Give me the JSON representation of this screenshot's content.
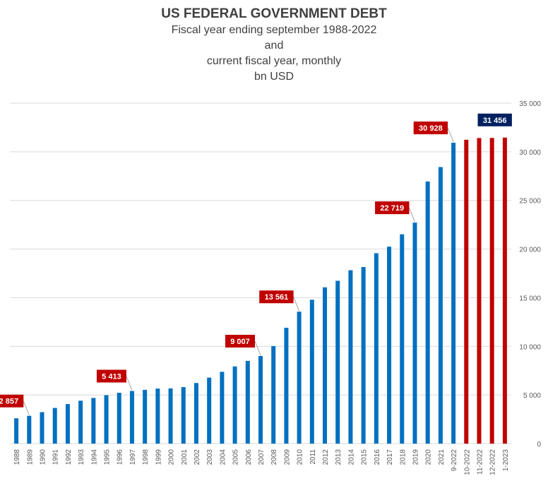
{
  "chart_data": {
    "type": "bar",
    "title": "US FEDERAL GOVERNMENT DEBT",
    "subtitle_lines": [
      "Fiscal year ending september 1988-2022",
      "and",
      "current fiscal year, monthly",
      "bn USD"
    ],
    "xlabel": "",
    "ylabel": "",
    "ylim": [
      0,
      35000
    ],
    "yticks": [
      0,
      5000,
      10000,
      15000,
      20000,
      25000,
      30000,
      35000
    ],
    "ytick_labels": [
      "0",
      "5 000",
      "10 000",
      "15 000",
      "20 000",
      "25 000",
      "30 000",
      "35 000"
    ],
    "y_axis_side": "right",
    "grid": true,
    "legend": false,
    "categories": [
      "1988",
      "1989",
      "1990",
      "1991",
      "1992",
      "1993",
      "1994",
      "1995",
      "1996",
      "1997",
      "1998",
      "1999",
      "2000",
      "2001",
      "2002",
      "2003",
      "2004",
      "2005",
      "2006",
      "2007",
      "2008",
      "2009",
      "2010",
      "2011",
      "2012",
      "2013",
      "2014",
      "2015",
      "2016",
      "2017",
      "2018",
      "2019",
      "2020",
      "2021",
      "9-2022",
      "10-2022",
      "11-2022",
      "12-2022",
      "1-2023"
    ],
    "values": [
      2602,
      2857,
      3233,
      3665,
      4065,
      4411,
      4693,
      4974,
      5225,
      5413,
      5526,
      5656,
      5674,
      5807,
      6228,
      6783,
      7379,
      7933,
      8507,
      9007,
      10025,
      11910,
      13561,
      14790,
      16066,
      16738,
      17824,
      18151,
      19573,
      20245,
      21516,
      22719,
      26945,
      28428,
      30928,
      31238,
      31413,
      31419,
      31456
    ],
    "bar_colors": [
      "#0070c0",
      "#0070c0",
      "#0070c0",
      "#0070c0",
      "#0070c0",
      "#0070c0",
      "#0070c0",
      "#0070c0",
      "#0070c0",
      "#0070c0",
      "#0070c0",
      "#0070c0",
      "#0070c0",
      "#0070c0",
      "#0070c0",
      "#0070c0",
      "#0070c0",
      "#0070c0",
      "#0070c0",
      "#0070c0",
      "#0070c0",
      "#0070c0",
      "#0070c0",
      "#0070c0",
      "#0070c0",
      "#0070c0",
      "#0070c0",
      "#0070c0",
      "#0070c0",
      "#0070c0",
      "#0070c0",
      "#0070c0",
      "#0070c0",
      "#0070c0",
      "#0070c0",
      "#c00000",
      "#c00000",
      "#c00000",
      "#c00000"
    ],
    "annotations": [
      {
        "index": 1,
        "text": "2 857",
        "color": "#c00000"
      },
      {
        "index": 9,
        "text": "5 413",
        "color": "#c00000"
      },
      {
        "index": 19,
        "text": "9 007",
        "color": "#c00000"
      },
      {
        "index": 22,
        "text": "13 561",
        "color": "#c00000"
      },
      {
        "index": 31,
        "text": "22 719",
        "color": "#c00000"
      },
      {
        "index": 34,
        "text": "30 928",
        "color": "#c00000"
      },
      {
        "index": 38,
        "text": "31 456",
        "color": "#002060"
      }
    ]
  },
  "colors": {
    "annual_bar": "#0070c0",
    "monthly_bar": "#c00000",
    "gridline": "#d9d9d9",
    "text": "#595959",
    "leader_line": "#a6a6a6"
  }
}
